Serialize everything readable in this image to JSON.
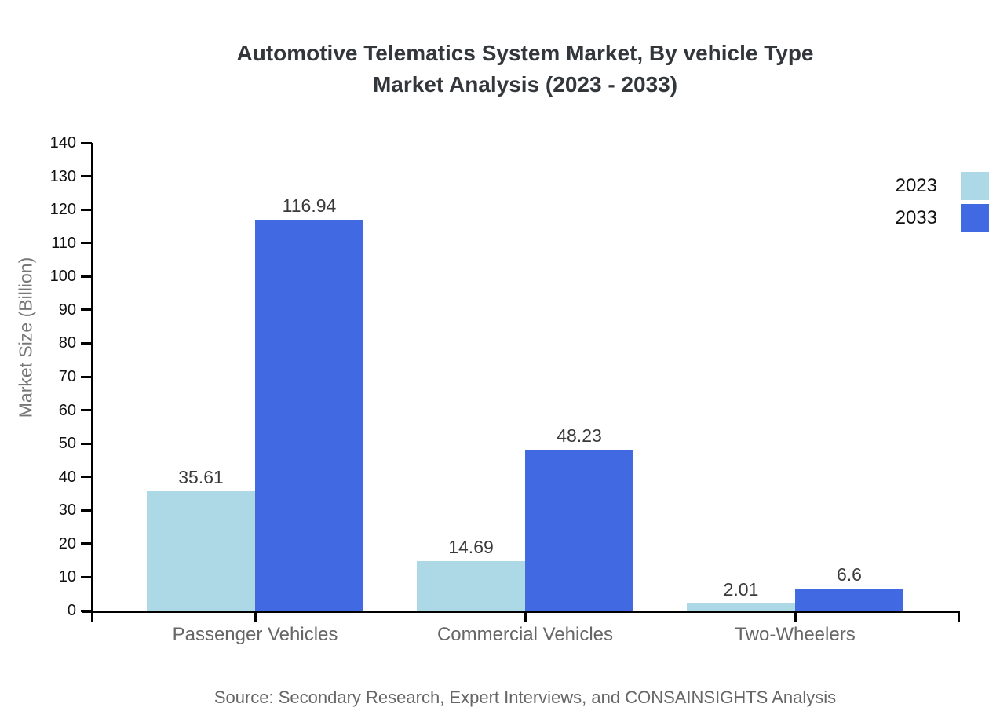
{
  "title": {
    "line1": "Automotive Telematics System Market, By vehicle Type",
    "line2": "Market Analysis (2023 - 2033)"
  },
  "source": "Source: Secondary Research, Expert Interviews, and CONSAINSIGHTS Analysis",
  "chart_data": {
    "type": "bar",
    "title": "Automotive Telematics System Market, By vehicle Type Market Analysis (2023 - 2033)",
    "categories": [
      "Passenger Vehicles",
      "Commercial Vehicles",
      "Two-Wheelers"
    ],
    "series": [
      {
        "name": "2023",
        "color": "#ADD8E6",
        "values": [
          35.61,
          14.69,
          2.01
        ]
      },
      {
        "name": "2033",
        "color": "#4169E1",
        "values": [
          116.94,
          48.23,
          6.6
        ]
      }
    ],
    "ylabel": "Market Size (Billion)",
    "xlabel": "",
    "ylim": [
      0,
      140
    ],
    "ytick_step": 10,
    "grid": false,
    "legend_position": "top-right",
    "bar_value_labels_shown": true
  }
}
